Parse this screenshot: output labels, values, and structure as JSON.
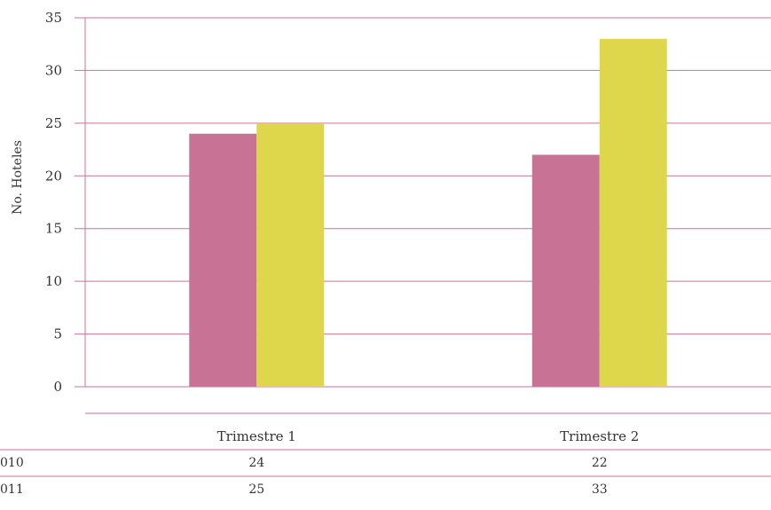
{
  "chart_data": {
    "type": "bar",
    "ylabel": "No. Hoteles",
    "xlabel": "",
    "ylim": [
      0,
      35
    ],
    "yticks": [
      0,
      5,
      10,
      15,
      20,
      25,
      30,
      35
    ],
    "categories": [
      "Trimestre 1",
      "Trimestre 2"
    ],
    "series": [
      {
        "name": "010",
        "values": [
          24,
          22
        ],
        "display": [
          "24",
          "22"
        ]
      },
      {
        "name": "011",
        "values": [
          25,
          33
        ],
        "display": [
          "25",
          "33"
        ]
      }
    ],
    "grid": true,
    "legend": "data-table",
    "colors": {
      "series": [
        "#c87396",
        "#ded74b"
      ],
      "grid": "#c87396",
      "text": "#333333"
    }
  }
}
